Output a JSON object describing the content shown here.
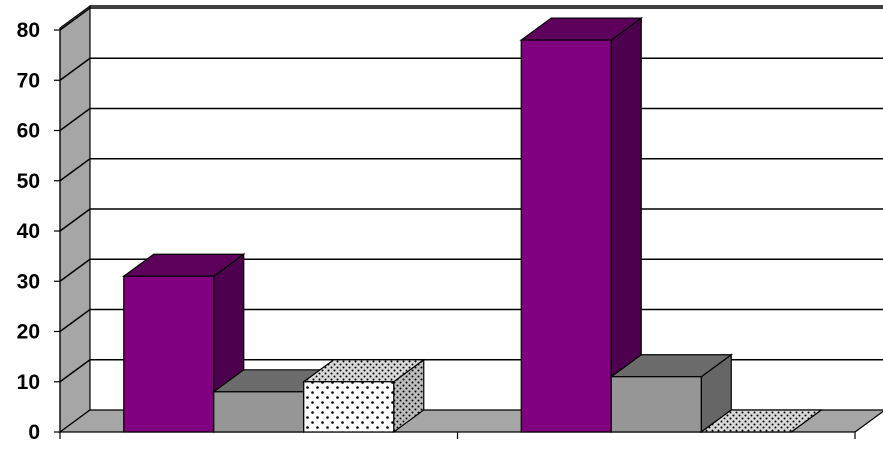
{
  "chart_data": {
    "type": "bar",
    "title": "",
    "xlabel": "",
    "ylabel": "",
    "ylim": [
      0,
      80
    ],
    "yticks": [
      "0",
      "10",
      "20",
      "30",
      "40",
      "50",
      "60",
      "70",
      "80"
    ],
    "grid": true,
    "three_d": true,
    "legend": "none",
    "categories": [
      "",
      ""
    ],
    "series": [
      {
        "values": [
          31,
          78
        ],
        "color": "#800080",
        "pattern": "solid"
      },
      {
        "values": [
          8,
          11
        ],
        "color": "#969696",
        "pattern": "solid"
      },
      {
        "values": [
          10,
          0
        ],
        "color": "#ffffff",
        "pattern": "dots"
      }
    ]
  }
}
